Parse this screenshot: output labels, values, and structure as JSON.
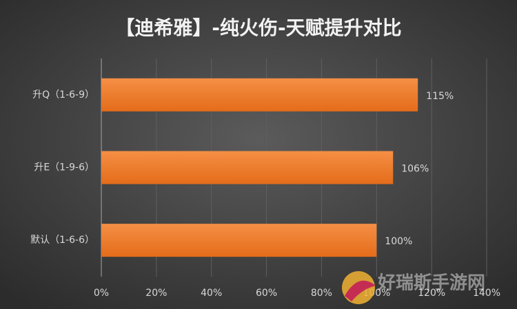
{
  "chart_data": {
    "type": "hbar",
    "title": "【迪希雅】-纯火伤-天赋提升对比",
    "categories": [
      "升Q（1-6-9）",
      "升E（1-9-6）",
      "默认（1-6-6）"
    ],
    "values": [
      115,
      106,
      100
    ],
    "value_labels": [
      "115%",
      "106%",
      "100%"
    ],
    "color": "#ee7f30",
    "xlim": [
      0,
      140
    ],
    "xticks": [
      {
        "value": 0,
        "label": "0%"
      },
      {
        "value": 20,
        "label": "20%"
      },
      {
        "value": 40,
        "label": "40%"
      },
      {
        "value": 60,
        "label": "60%"
      },
      {
        "value": 80,
        "label": "80%"
      },
      {
        "value": 100,
        "label": "100%"
      },
      {
        "value": 120,
        "label": "120%"
      },
      {
        "value": 140,
        "label": "140%"
      }
    ],
    "grid": true
  },
  "watermark": "好瑞斯手游网"
}
